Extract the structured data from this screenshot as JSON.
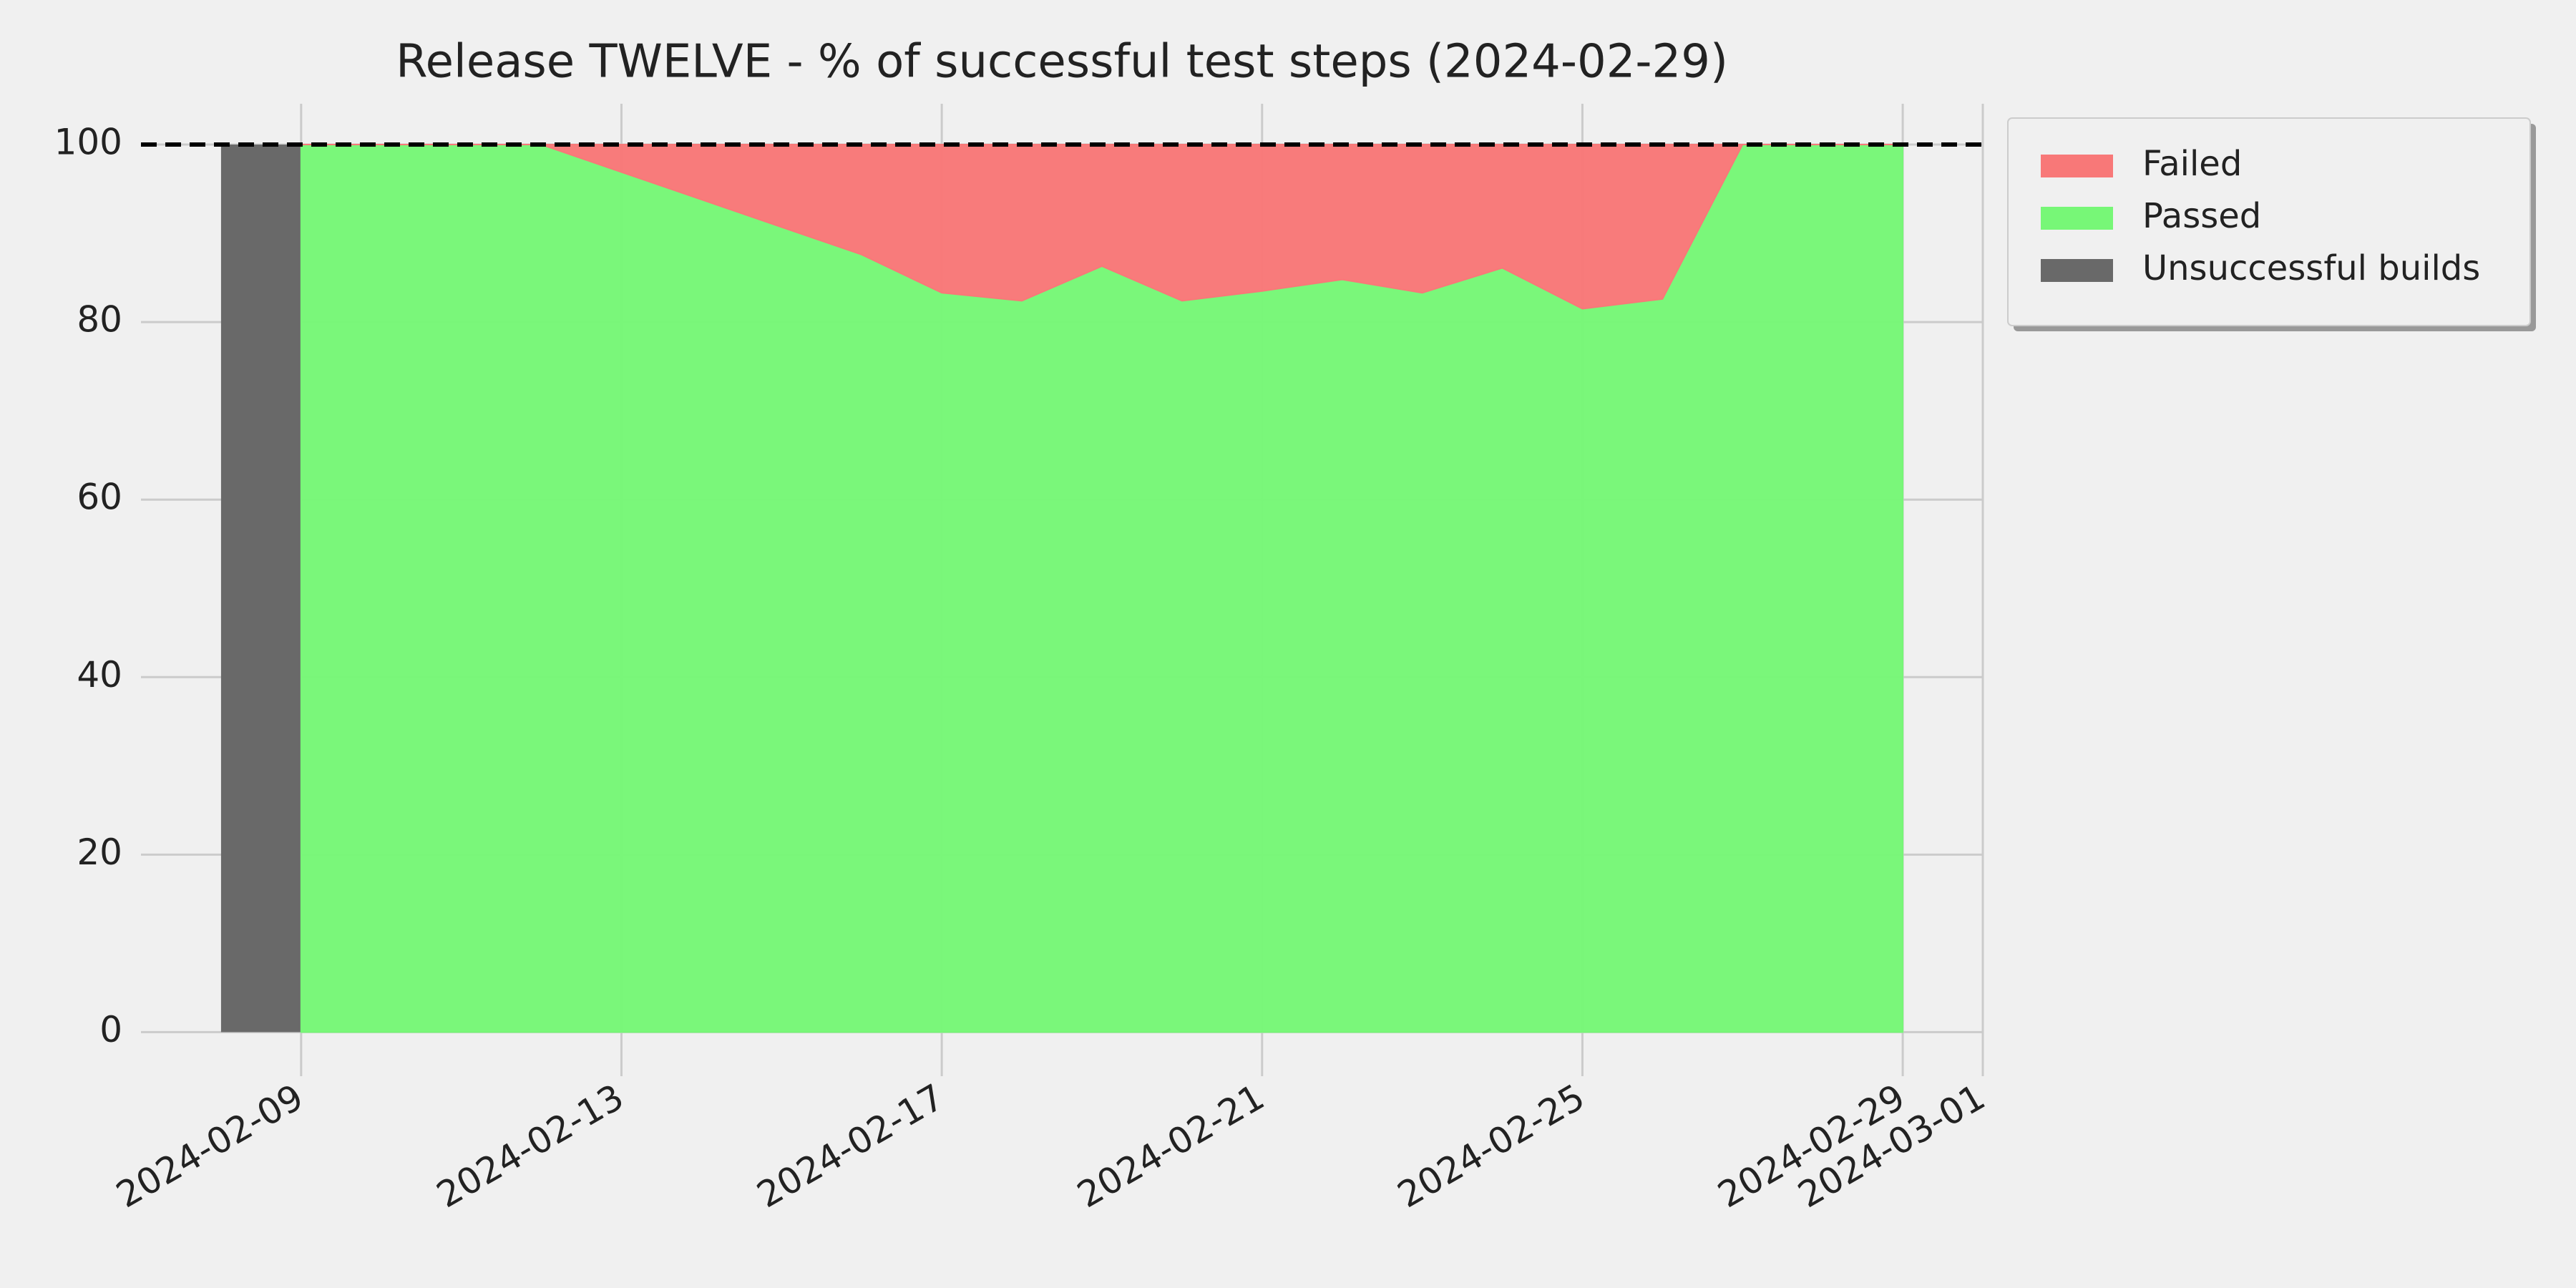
{
  "chart_data": {
    "type": "area",
    "title": "Release TWELVE - % of successful test steps (2024-02-29)",
    "x": [
      "2024-02-09",
      "2024-02-10",
      "2024-02-11",
      "2024-02-12",
      "2024-02-13",
      "2024-02-14",
      "2024-02-15",
      "2024-02-16",
      "2024-02-17",
      "2024-02-18",
      "2024-02-19",
      "2024-02-20",
      "2024-02-21",
      "2024-02-22",
      "2024-02-23",
      "2024-02-24",
      "2024-02-25",
      "2024-02-26",
      "2024-02-27",
      "2024-02-28",
      "2024-02-29"
    ],
    "series": [
      {
        "name": "Failed",
        "color": "#f87878",
        "kind": "area",
        "values": [
          0,
          0,
          0,
          0,
          3.1,
          6.2,
          9.3,
          12.4,
          16.7,
          17.6,
          13.7,
          17.6,
          16.5,
          15.2,
          16.7,
          13.9,
          18.5,
          17.4,
          0,
          0,
          0
        ]
      },
      {
        "name": "Passed",
        "color": "#77f777",
        "kind": "area",
        "values": [
          100,
          100,
          100,
          100,
          96.9,
          93.8,
          90.7,
          87.6,
          83.3,
          82.4,
          86.3,
          82.4,
          83.5,
          84.8,
          83.3,
          86.1,
          81.5,
          82.6,
          100,
          100,
          100
        ]
      },
      {
        "name": "Unsuccessful builds",
        "color": "#696969",
        "kind": "bar",
        "x": [
          "2024-02-08"
        ],
        "values": [
          100
        ]
      }
    ],
    "reference_line": {
      "value": 100,
      "color": "#000000",
      "dashed": true
    },
    "xlim": [
      "2024-02-07",
      "2024-03-01"
    ],
    "xticks": [
      "2024-02-09",
      "2024-02-13",
      "2024-02-17",
      "2024-02-21",
      "2024-02-25",
      "2024-02-29",
      "2024-03-01"
    ],
    "ylim": [
      -4,
      104.6
    ],
    "yticks": [
      0,
      20,
      40,
      60,
      80,
      100
    ],
    "grid": true,
    "legend": "outside-upper-right"
  }
}
